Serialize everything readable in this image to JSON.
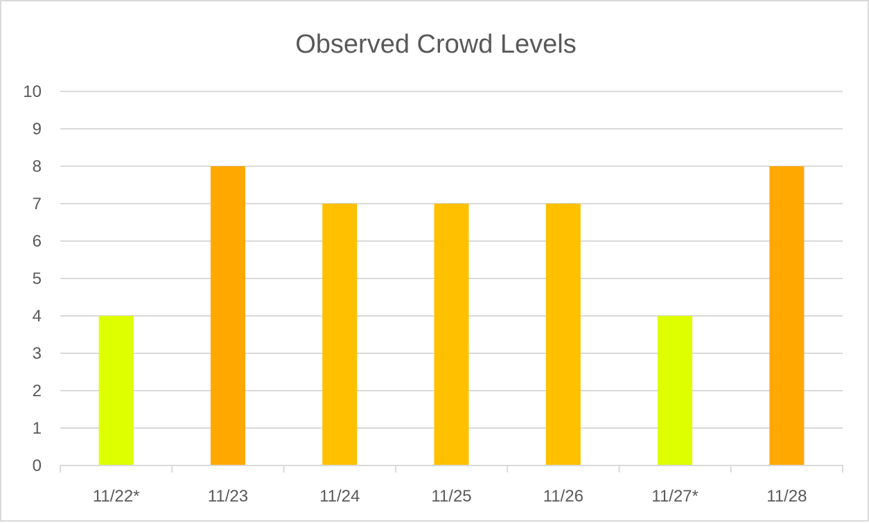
{
  "chart_data": {
    "type": "bar",
    "title": "Observed Crowd Levels",
    "xlabel": "",
    "ylabel": "",
    "categories": [
      "11/22*",
      "11/23",
      "11/24",
      "11/25",
      "11/26",
      "11/27*",
      "11/28"
    ],
    "values": [
      4,
      8,
      7,
      7,
      7,
      4,
      8
    ],
    "bar_colors": [
      "#DDFF00",
      "#FFA800",
      "#FFC000",
      "#FFC000",
      "#FFC000",
      "#DDFF00",
      "#FFA800"
    ],
    "ylim": [
      0,
      10
    ],
    "yticks": [
      "0",
      "1",
      "2",
      "3",
      "4",
      "5",
      "6",
      "7",
      "8",
      "9",
      "10"
    ],
    "grid": true,
    "legend": "none",
    "colors": {
      "gridline": "#d9d9d9",
      "text": "#595959",
      "border": "#d9d9d9"
    }
  }
}
